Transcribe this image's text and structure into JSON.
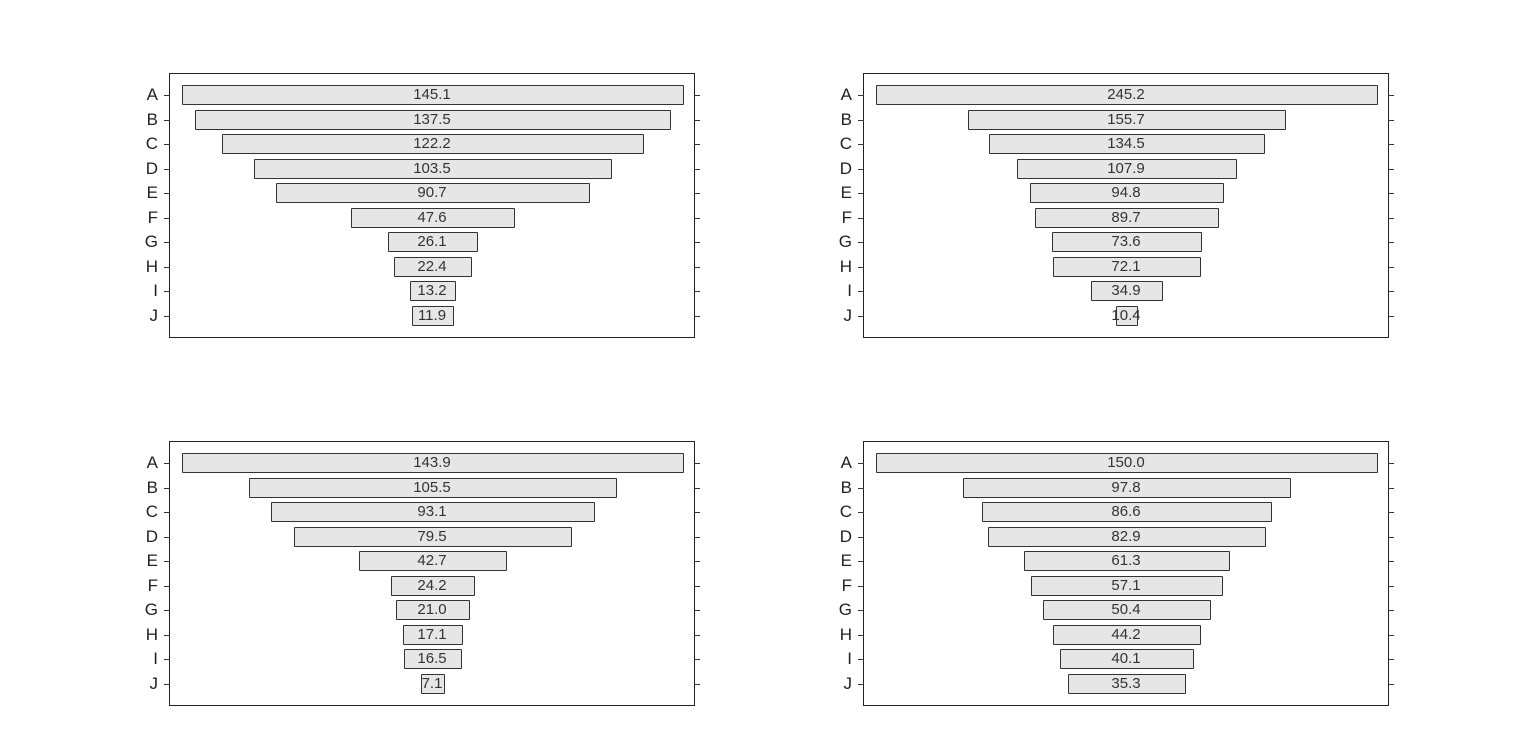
{
  "chart_data": [
    {
      "type": "bar",
      "orientation": "horizontal-centered (funnel)",
      "panel": "top-left",
      "categories": [
        "A",
        "B",
        "C",
        "D",
        "E",
        "F",
        "G",
        "H",
        "I",
        "J"
      ],
      "values": [
        145.1,
        137.5,
        122.2,
        103.5,
        90.7,
        47.6,
        26.1,
        22.4,
        13.2,
        11.9
      ],
      "title": "",
      "xlabel": "",
      "ylabel": "",
      "grid": false,
      "legend": null
    },
    {
      "type": "bar",
      "orientation": "horizontal-centered (funnel)",
      "panel": "top-right",
      "categories": [
        "A",
        "B",
        "C",
        "D",
        "E",
        "F",
        "G",
        "H",
        "I",
        "J"
      ],
      "values": [
        245.2,
        155.7,
        134.5,
        107.9,
        94.8,
        89.7,
        73.6,
        72.1,
        34.9,
        10.4
      ],
      "title": "",
      "xlabel": "",
      "ylabel": "",
      "grid": false,
      "legend": null
    },
    {
      "type": "bar",
      "orientation": "horizontal-centered (funnel)",
      "panel": "bottom-left",
      "categories": [
        "A",
        "B",
        "C",
        "D",
        "E",
        "F",
        "G",
        "H",
        "I",
        "J"
      ],
      "values": [
        143.9,
        105.5,
        93.1,
        79.5,
        42.7,
        24.2,
        21.0,
        17.1,
        16.5,
        7.1
      ],
      "title": "",
      "xlabel": "",
      "ylabel": "",
      "grid": false,
      "legend": null
    },
    {
      "type": "bar",
      "orientation": "horizontal-centered (funnel)",
      "panel": "bottom-right",
      "categories": [
        "A",
        "B",
        "C",
        "D",
        "E",
        "F",
        "G",
        "H",
        "I",
        "J"
      ],
      "values": [
        150.0,
        97.8,
        86.6,
        82.9,
        61.3,
        57.1,
        50.4,
        44.2,
        40.1,
        35.3
      ],
      "title": "",
      "xlabel": "",
      "ylabel": "",
      "grid": false,
      "legend": null
    }
  ],
  "labels": [
    [
      "145.1",
      "137.5",
      "122.2",
      "103.5",
      "90.7",
      "47.6",
      "26.1",
      "22.4",
      "13.2",
      "11.9"
    ],
    [
      "245.2",
      "155.7",
      "134.5",
      "107.9",
      "94.8",
      "89.7",
      "73.6",
      "72.1",
      "34.9",
      "10.4"
    ],
    [
      "143.9",
      "105.5",
      "93.1",
      "79.5",
      "42.7",
      "24.2",
      "21.0",
      "17.1",
      "16.5",
      "7.1"
    ],
    [
      "150.0",
      "97.8",
      "86.6",
      "82.9",
      "61.3",
      "57.1",
      "50.4",
      "44.2",
      "40.1",
      "35.3"
    ]
  ],
  "colors": {
    "bar_fill": "#e6e6e6",
    "bar_edge": "#333333",
    "axis": "#222222"
  }
}
